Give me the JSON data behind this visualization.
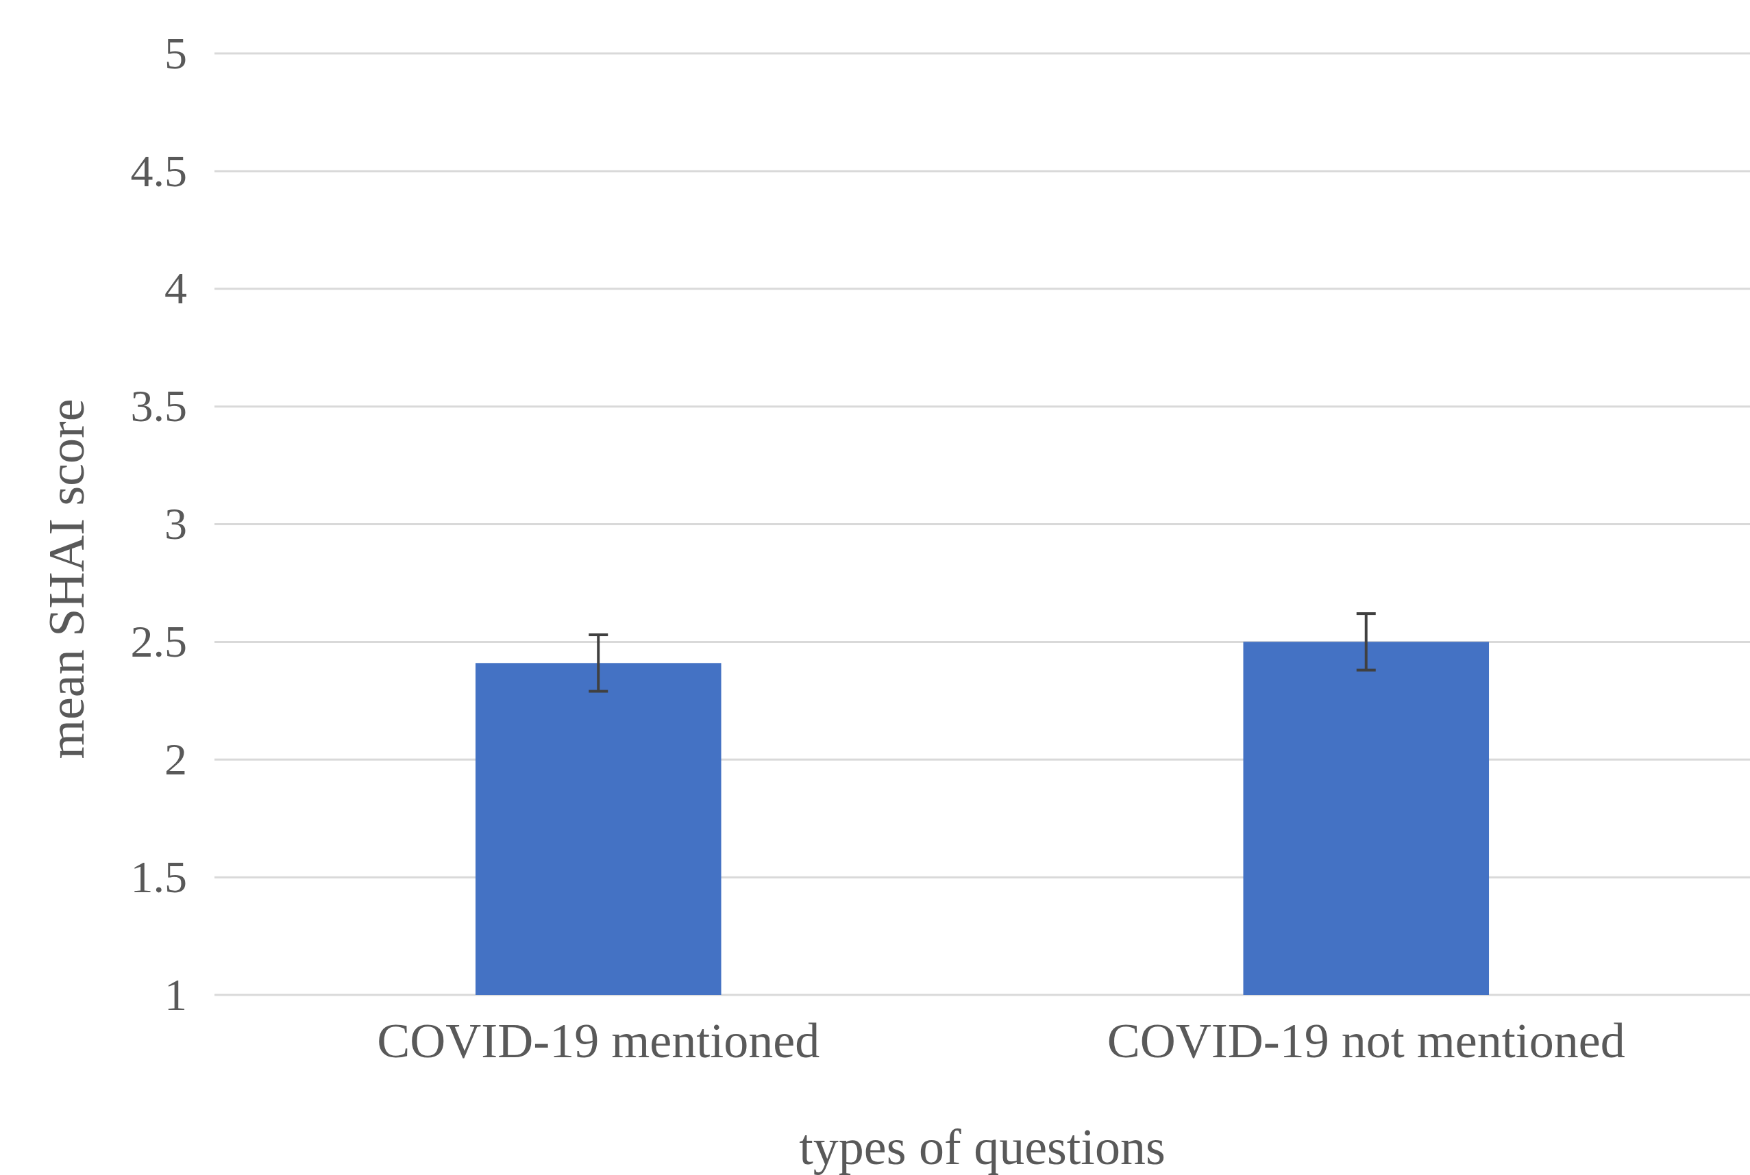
{
  "chart_data": {
    "type": "bar",
    "xlabel": "types of questions",
    "ylabel": "mean SHAI score",
    "categories": [
      "COVID-19 mentioned",
      "COVID-19 not mentioned"
    ],
    "values": [
      2.41,
      2.5
    ],
    "errors": [
      0.12,
      0.12
    ],
    "color": "#4472c4",
    "ylim": [
      1,
      5
    ],
    "yticks": [
      1,
      1.5,
      2,
      2.5,
      3,
      3.5,
      4,
      4.5,
      5
    ],
    "grid": "y"
  }
}
